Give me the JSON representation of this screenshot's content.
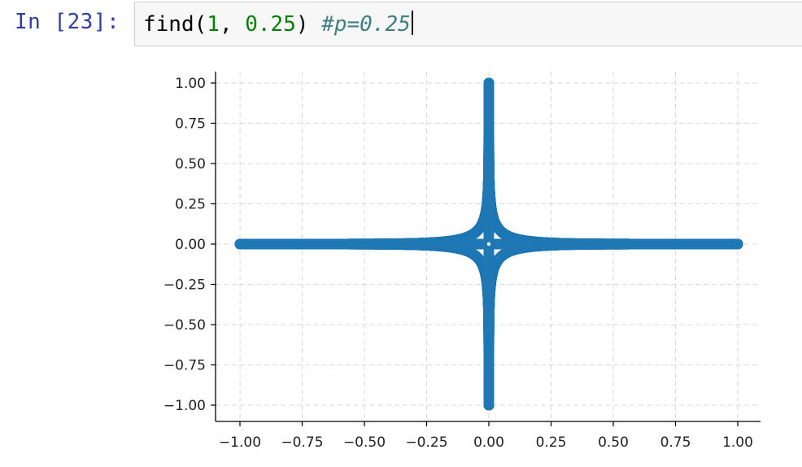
{
  "cell": {
    "prompt": "In [23]:",
    "code": {
      "func": "find(",
      "arg1": "1",
      "sep": ", ",
      "arg2": "0.25",
      "close": ") ",
      "comment": "#p=0.25"
    }
  },
  "chart_data": {
    "type": "scatter",
    "marker_color": "#1f77b4",
    "grid": true,
    "grid_style": "dashed",
    "xlim": [
      -1.0,
      1.0
    ],
    "ylim": [
      -1.0,
      1.0
    ],
    "xticks": [
      "−1.00",
      "−0.75",
      "−0.50",
      "−0.25",
      "0.00",
      "0.25",
      "0.50",
      "0.75",
      "1.00"
    ],
    "yticks": [
      "1.00",
      "0.75",
      "0.50",
      "0.25",
      "0.00",
      "−0.25",
      "−0.50",
      "−0.75",
      "−1.00"
    ],
    "xtick_values": [
      -1.0,
      -0.75,
      -0.5,
      -0.25,
      0.0,
      0.25,
      0.5,
      0.75,
      1.0
    ],
    "ytick_values": [
      1.0,
      0.75,
      0.5,
      0.25,
      0.0,
      -0.25,
      -0.5,
      -0.75,
      -1.0
    ],
    "shape_exponent": 0.25,
    "description_points": [
      {
        "x": 1.0,
        "y": 0.0
      },
      {
        "x": -1.0,
        "y": 0.0
      },
      {
        "x": 0.0,
        "y": 1.0
      },
      {
        "x": 0.0,
        "y": -1.0
      },
      {
        "x": 0.0625,
        "y": 0.0625
      },
      {
        "x": -0.0625,
        "y": 0.0625
      },
      {
        "x": 0.0625,
        "y": -0.0625
      },
      {
        "x": -0.0625,
        "y": -0.0625
      }
    ]
  }
}
